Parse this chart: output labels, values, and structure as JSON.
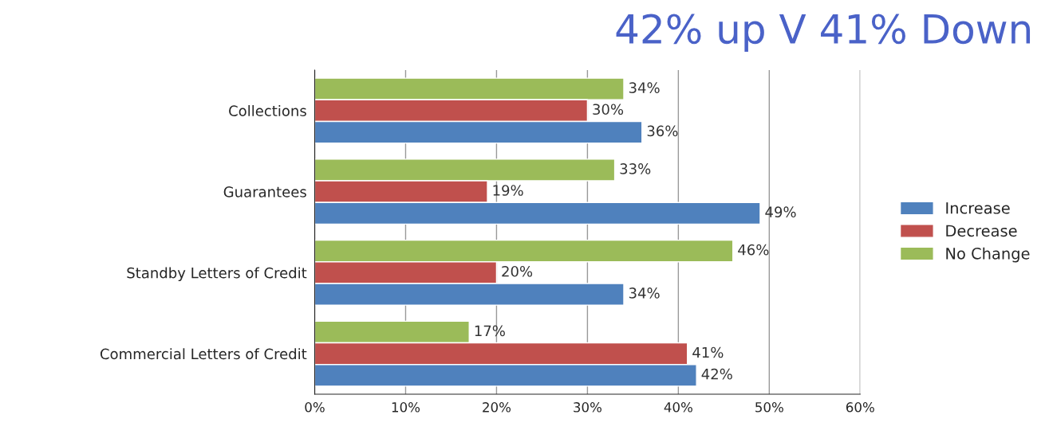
{
  "chart_data": {
    "type": "bar",
    "orientation": "horizontal",
    "title": "42% up V 41% Down",
    "categories": [
      "Collections",
      "Guarantees",
      "Standby Letters of Credit",
      "Commercial Letters of Credit"
    ],
    "series": [
      {
        "name": "No Change",
        "color": "#9bbb59",
        "values": [
          34,
          33,
          46,
          17
        ],
        "value_labels": [
          "34%",
          "33%",
          "46%",
          "17%"
        ]
      },
      {
        "name": "Decrease",
        "color": "#c0504d",
        "values": [
          30,
          19,
          20,
          41
        ],
        "value_labels": [
          "30%",
          "19%",
          "20%",
          "41%"
        ]
      },
      {
        "name": "Increase",
        "color": "#4f81bd",
        "values": [
          36,
          49,
          34,
          42
        ],
        "value_labels": [
          "36%",
          "49%",
          "34%",
          "42%"
        ]
      }
    ],
    "xlim": [
      0,
      60
    ],
    "xticks": [
      {
        "value": 0,
        "label": "0%"
      },
      {
        "value": 10,
        "label": "10%"
      },
      {
        "value": 20,
        "label": "20%"
      },
      {
        "value": 30,
        "label": "30%"
      },
      {
        "value": 40,
        "label": "40%"
      },
      {
        "value": 50,
        "label": "50%"
      },
      {
        "value": 60,
        "label": "60%"
      }
    ],
    "grid": "x",
    "legend": "right"
  }
}
